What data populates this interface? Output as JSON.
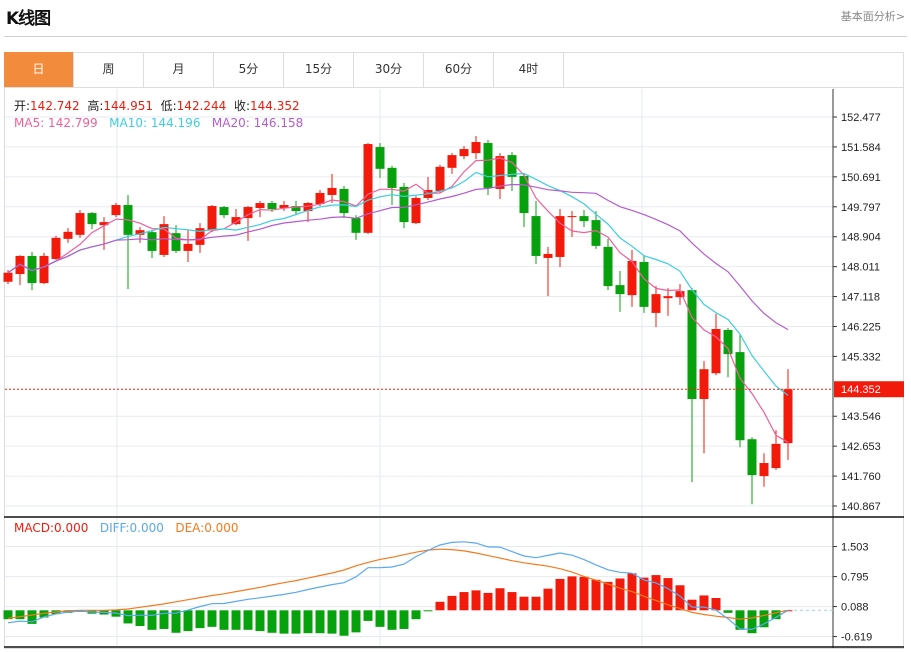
{
  "header": {
    "title": "K线图",
    "link": "基本面分析>"
  },
  "tabs": [
    {
      "label": "日",
      "active": true
    },
    {
      "label": "周"
    },
    {
      "label": "月"
    },
    {
      "label": "5分"
    },
    {
      "label": "15分"
    },
    {
      "label": "30分"
    },
    {
      "label": "60分"
    },
    {
      "label": "4时"
    }
  ],
  "ohlc_legend": {
    "open_label": "开:",
    "open": "142.742",
    "high_label": "高:",
    "high": "144.951",
    "low_label": "低:",
    "low": "142.244",
    "close_label": "收:",
    "close": "144.352"
  },
  "ma_legend": {
    "ma5": "MA5: 142.799",
    "ma10": "MA10: 144.196",
    "ma20": "MA20: 146.158"
  },
  "macd_legend": {
    "macd": "MACD:0.000",
    "diff": "DIFF:0.000",
    "dea": "DEA:0.000"
  },
  "colors": {
    "up": "#f21b0b",
    "down": "#07a10d",
    "ma5": "#f0609a",
    "ma10": "#3fcde0",
    "ma20": "#b55ccd",
    "diff": "#5aa9f0",
    "dea": "#f47a20",
    "accent": "#f28c3c"
  },
  "chart_data": [
    {
      "type": "candlestick",
      "title": "K线图",
      "ylim": [
        140.867,
        152.477
      ],
      "y_ticks": [
        "152.477",
        "151.584",
        "150.691",
        "149.797",
        "148.904",
        "148.011",
        "147.118",
        "146.225",
        "145.332",
        "143.546",
        "142.653",
        "141.760",
        "140.867"
      ],
      "current_price": "144.352",
      "ohlc": [
        [
          147.56,
          147.83,
          147.91,
          147.49
        ],
        [
          147.79,
          148.33,
          148.35,
          147.46
        ],
        [
          148.33,
          147.52,
          148.45,
          147.31
        ],
        [
          147.52,
          148.33,
          148.42,
          147.49
        ],
        [
          148.24,
          148.87,
          148.93,
          148.21
        ],
        [
          148.84,
          149.05,
          149.16,
          148.72
        ],
        [
          148.96,
          149.61,
          149.7,
          148.87
        ],
        [
          149.61,
          149.28,
          149.64,
          149.13
        ],
        [
          149.25,
          149.34,
          149.49,
          148.51
        ],
        [
          149.55,
          149.85,
          149.91,
          149.49
        ],
        [
          149.85,
          148.96,
          150.15,
          147.34
        ],
        [
          148.96,
          149.1,
          149.19,
          148.72
        ],
        [
          149.04,
          148.48,
          149.1,
          148.27
        ],
        [
          148.36,
          149.28,
          149.52,
          148.3
        ],
        [
          149.01,
          148.48,
          149.25,
          148.42
        ],
        [
          148.48,
          148.69,
          149.1,
          148.15
        ],
        [
          148.66,
          149.16,
          149.31,
          148.42
        ],
        [
          149.1,
          149.82,
          149.85,
          149.04
        ],
        [
          149.79,
          149.55,
          149.82,
          149.46
        ],
        [
          149.28,
          149.49,
          149.73,
          149.25
        ],
        [
          149.46,
          149.79,
          149.82,
          148.78
        ],
        [
          149.76,
          149.91,
          149.97,
          149.49
        ],
        [
          149.91,
          149.73,
          149.97,
          149.64
        ],
        [
          149.76,
          149.85,
          149.97,
          149.67
        ],
        [
          149.82,
          149.67,
          149.97,
          149.55
        ],
        [
          149.67,
          149.91,
          149.94,
          149.34
        ],
        [
          149.88,
          150.21,
          150.3,
          149.82
        ],
        [
          150.15,
          150.36,
          150.78,
          149.91
        ],
        [
          150.33,
          149.61,
          150.42,
          149.46
        ],
        [
          149.46,
          149.02,
          149.55,
          148.81
        ],
        [
          149.02,
          151.67,
          151.7,
          148.99
        ],
        [
          151.58,
          150.93,
          151.7,
          150.66
        ],
        [
          150.96,
          150.36,
          151.02,
          149.85
        ],
        [
          150.39,
          149.34,
          150.51,
          149.16
        ],
        [
          149.31,
          150.06,
          150.12,
          149.28
        ],
        [
          150.06,
          150.3,
          150.69,
          150.0
        ],
        [
          150.27,
          150.99,
          151.05,
          150.21
        ],
        [
          150.96,
          151.34,
          151.4,
          150.78
        ],
        [
          151.31,
          151.52,
          151.61,
          151.22
        ],
        [
          151.4,
          151.73,
          151.91,
          151.22
        ],
        [
          151.7,
          150.36,
          151.79,
          150.15
        ],
        [
          150.33,
          151.31,
          151.4,
          150.03
        ],
        [
          151.34,
          150.69,
          151.43,
          150.27
        ],
        [
          150.72,
          149.61,
          150.78,
          149.19
        ],
        [
          149.52,
          148.33,
          149.97,
          148.09
        ],
        [
          148.27,
          148.39,
          148.6,
          147.13
        ],
        [
          148.3,
          149.52,
          149.73,
          148.0
        ],
        [
          149.49,
          149.52,
          149.67,
          148.9
        ],
        [
          149.52,
          149.37,
          149.7,
          149.19
        ],
        [
          149.4,
          148.63,
          149.67,
          148.54
        ],
        [
          148.6,
          147.43,
          148.84,
          147.31
        ],
        [
          147.46,
          147.19,
          147.88,
          146.66
        ],
        [
          147.16,
          148.18,
          148.51,
          146.81
        ],
        [
          148.15,
          146.81,
          148.33,
          146.63
        ],
        [
          146.63,
          147.19,
          147.43,
          146.21
        ],
        [
          147.07,
          147.13,
          147.37,
          146.54
        ],
        [
          147.1,
          147.28,
          147.49,
          146.87
        ],
        [
          147.31,
          144.06,
          147.37,
          141.58
        ],
        [
          144.06,
          144.95,
          145.19,
          142.44
        ],
        [
          144.83,
          146.15,
          146.6,
          144.77
        ],
        [
          146.12,
          145.4,
          146.18,
          144.71
        ],
        [
          145.46,
          142.83,
          145.97,
          142.62
        ],
        [
          142.86,
          141.79,
          142.92,
          140.92
        ],
        [
          141.76,
          142.15,
          142.44,
          141.44
        ],
        [
          142.0,
          142.72,
          143.13,
          141.94
        ],
        [
          142.742,
          144.352,
          144.951,
          142.244
        ]
      ],
      "ma_periods": [
        5,
        10,
        20
      ]
    },
    {
      "type": "bar",
      "title": "MACD",
      "ylim": [
        -0.75,
        1.75
      ],
      "y_ticks": [
        "1.503",
        "0.795",
        "0.088",
        "-0.619"
      ],
      "macd": [
        -0.21,
        -0.21,
        -0.32,
        -0.17,
        -0.09,
        -0.06,
        -0.04,
        -0.08,
        -0.1,
        -0.15,
        -0.31,
        -0.37,
        -0.46,
        -0.44,
        -0.53,
        -0.49,
        -0.42,
        -0.39,
        -0.46,
        -0.46,
        -0.46,
        -0.49,
        -0.53,
        -0.55,
        -0.55,
        -0.54,
        -0.54,
        -0.55,
        -0.6,
        -0.52,
        -0.25,
        -0.39,
        -0.46,
        -0.44,
        -0.21,
        -0.02,
        0.2,
        0.34,
        0.43,
        0.47,
        0.41,
        0.52,
        0.43,
        0.32,
        0.32,
        0.51,
        0.74,
        0.8,
        0.79,
        0.72,
        0.67,
        0.75,
        0.87,
        0.77,
        0.83,
        0.76,
        0.59,
        0.25,
        0.35,
        0.29,
        -0.06,
        -0.46,
        -0.54,
        -0.4,
        -0.21,
        0.0
      ],
      "dea": [
        -0.19,
        -0.15,
        -0.11,
        -0.07,
        -0.04,
        -0.01,
        0.0,
        0.0,
        0.0,
        0.01,
        0.03,
        0.07,
        0.11,
        0.15,
        0.2,
        0.25,
        0.3,
        0.35,
        0.39,
        0.44,
        0.49,
        0.54,
        0.6,
        0.65,
        0.7,
        0.76,
        0.82,
        0.88,
        0.95,
        1.05,
        1.13,
        1.2,
        1.25,
        1.31,
        1.37,
        1.42,
        1.44,
        1.43,
        1.4,
        1.35,
        1.29,
        1.23,
        1.17,
        1.12,
        1.08,
        1.04,
        0.98,
        0.9,
        0.8,
        0.71,
        0.62,
        0.52,
        0.44,
        0.33,
        0.23,
        0.13,
        0.04,
        -0.05,
        -0.1,
        -0.14,
        -0.17,
        -0.21,
        -0.18,
        -0.12,
        -0.06,
        0.0
      ]
    }
  ]
}
